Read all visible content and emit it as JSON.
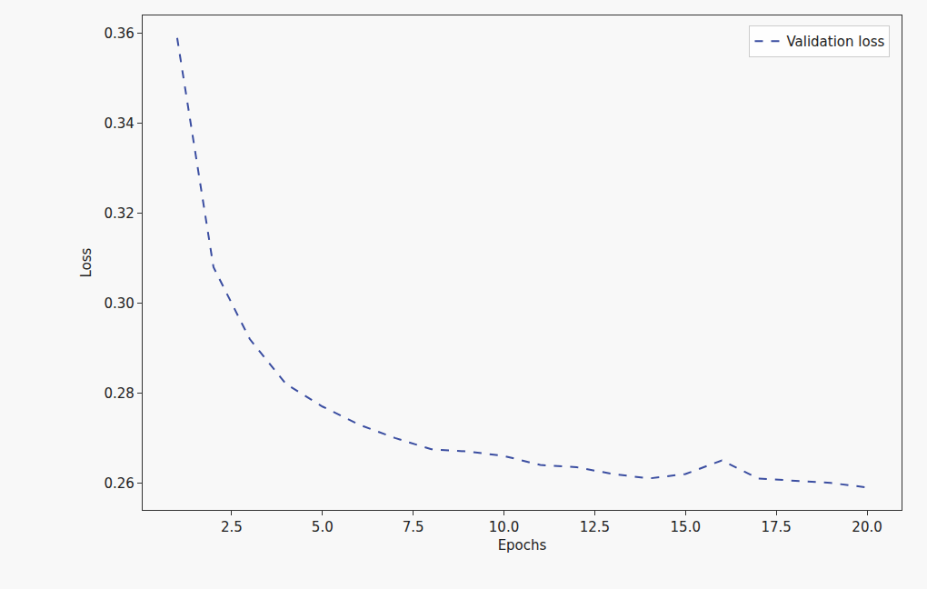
{
  "chart_data": {
    "type": "line",
    "x_label": "Epochs",
    "y_label": "Loss",
    "x": [
      1,
      2,
      3,
      4,
      5,
      6,
      7,
      8,
      9,
      10,
      11,
      12,
      13,
      14,
      15,
      16,
      17,
      18,
      19,
      20
    ],
    "series": [
      {
        "name": "Validation loss",
        "color": "#3b4ea1",
        "line_style": "dashed",
        "values": [
          0.359,
          0.308,
          0.292,
          0.282,
          0.277,
          0.273,
          0.27,
          0.2675,
          0.267,
          0.266,
          0.264,
          0.2635,
          0.262,
          0.261,
          0.262,
          0.265,
          0.261,
          0.2605,
          0.26,
          0.259
        ]
      }
    ],
    "xlim": [
      0.05,
      20.95
    ],
    "xticks": [
      2.5,
      {
        "value": 5,
        "label": "5.0"
      },
      7.5,
      {
        "value": 10,
        "label": "10.0"
      },
      12.5,
      {
        "value": 15,
        "label": "15.0"
      },
      17.5,
      {
        "value": 20,
        "label": "20.0"
      }
    ],
    "ylim": [
      0.254,
      0.364
    ],
    "yticks": [
      0.26,
      0.28,
      {
        "value": 0.3,
        "label": "0.30"
      },
      0.32,
      0.34,
      0.36
    ],
    "grid": false,
    "legend": "upper right"
  }
}
